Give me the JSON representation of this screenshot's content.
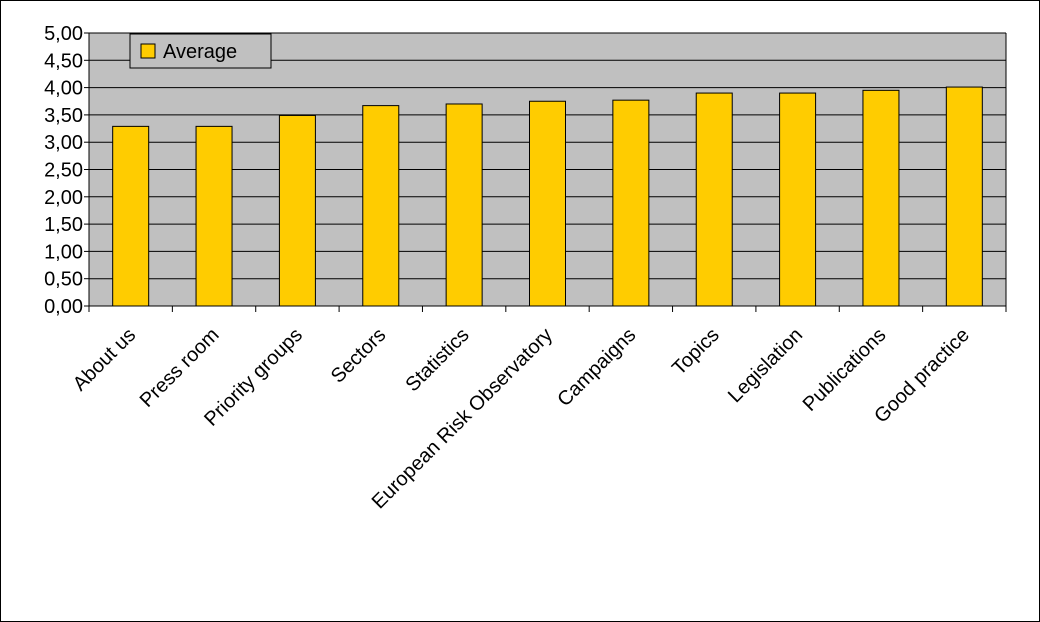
{
  "chart_data": {
    "type": "bar",
    "categories": [
      "About us",
      "Press room",
      "Priority groups",
      "Sectors",
      "Statistics",
      "European Risk Observatory",
      "Campaigns",
      "Topics",
      "Legislation",
      "Publications",
      "Good practice"
    ],
    "series": [
      {
        "name": "Average",
        "values": [
          3.29,
          3.29,
          3.49,
          3.67,
          3.7,
          3.75,
          3.77,
          3.9,
          3.9,
          3.95,
          4.01
        ]
      }
    ],
    "y_ticks": [
      "0,00",
      "0,50",
      "1,00",
      "1,50",
      "2,00",
      "2,50",
      "3,00",
      "3,50",
      "4,00",
      "4,50",
      "5,00"
    ],
    "ylim": [
      0,
      5
    ],
    "grid": true,
    "legend_position": "top-left",
    "colors": {
      "bar": "#ffcc00",
      "plot_background": "#c0c0c0",
      "bar_edge": "#000000",
      "grid": "#000000"
    }
  }
}
